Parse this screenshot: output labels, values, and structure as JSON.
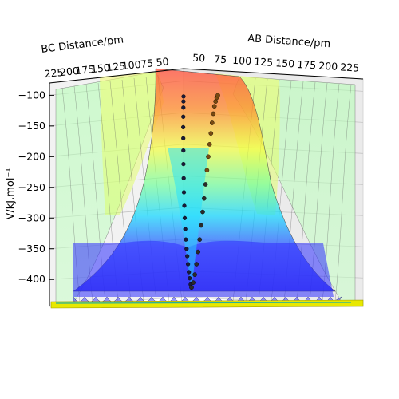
{
  "chart_data": {
    "type": "surface-3d",
    "title": "",
    "axes": {
      "bc_label": "BC Distance/pm",
      "ab_label": "AB Distance/pm",
      "z_label": "V/kJ.mol⁻¹",
      "bc_ticks": [
        "225",
        "200",
        "175",
        "150",
        "125",
        "100",
        "75",
        "50"
      ],
      "ab_ticks": [
        "50",
        "75",
        "100",
        "125",
        "150",
        "175",
        "200",
        "225"
      ],
      "z_ticks": [
        "−100",
        "−150",
        "−200",
        "−250",
        "−300",
        "−350",
        "−400"
      ],
      "bc_range": [
        50,
        225
      ],
      "ab_range": [
        50,
        225
      ],
      "z_range": [
        -440,
        -80
      ],
      "grid": true
    },
    "colormap": [
      "#2020ff",
      "#00d0ff",
      "#60ff90",
      "#f0ff40",
      "#ff9020",
      "#ff4040"
    ],
    "trajectory": {
      "series": [
        {
          "values": [
            {
              "v": -102
            },
            {
              "v": -110
            },
            {
              "v": -120
            },
            {
              "v": -135
            },
            {
              "v": -152
            },
            {
              "v": -170
            },
            {
              "v": -190
            },
            {
              "v": -212
            },
            {
              "v": -235
            },
            {
              "v": -258
            },
            {
              "v": -280
            },
            {
              "v": -300
            },
            {
              "v": -318
            },
            {
              "v": -335
            },
            {
              "v": -350
            },
            {
              "v": -362
            },
            {
              "v": -375
            },
            {
              "v": -388
            },
            {
              "v": -398
            },
            {
              "v": -408
            },
            {
              "v": -413
            }
          ]
        },
        {
          "values": [
            {
              "v": -413
            },
            {
              "v": -405
            },
            {
              "v": -392
            },
            {
              "v": -375
            },
            {
              "v": -355
            },
            {
              "v": -335
            },
            {
              "v": -312
            },
            {
              "v": -290
            },
            {
              "v": -268
            },
            {
              "v": -245
            },
            {
              "v": -222
            },
            {
              "v": -200
            },
            {
              "v": -180
            },
            {
              "v": -162
            },
            {
              "v": -145
            },
            {
              "v": -130
            },
            {
              "v": -118
            },
            {
              "v": -110
            },
            {
              "v": -104
            },
            {
              "v": -100
            }
          ]
        }
      ]
    }
  }
}
